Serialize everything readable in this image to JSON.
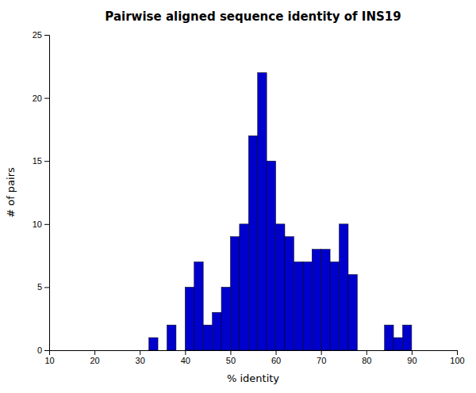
{
  "chart_data": {
    "type": "bar",
    "title": "Pairwise aligned sequence identity of INS19",
    "xlabel": "% identity",
    "ylabel": "# of pairs",
    "x": [
      32,
      34,
      36,
      38,
      40,
      42,
      44,
      46,
      48,
      50,
      52,
      54,
      56,
      58,
      60,
      62,
      64,
      66,
      68,
      70,
      72,
      74,
      76,
      84,
      86,
      88
    ],
    "values": [
      1,
      0,
      2,
      0,
      5,
      7,
      2,
      3,
      5,
      9,
      10,
      17,
      22,
      15,
      10,
      9,
      7,
      7,
      8,
      8,
      7,
      10,
      6,
      2,
      1,
      2
    ],
    "width": 2,
    "color": "#0000CC",
    "xlim": [
      10,
      100
    ],
    "ylim": [
      0,
      25
    ],
    "xticks": [
      10,
      20,
      30,
      40,
      50,
      60,
      70,
      80,
      90,
      100
    ],
    "yticks": [
      0,
      5,
      10,
      15,
      20,
      25
    ],
    "grid": false
  }
}
